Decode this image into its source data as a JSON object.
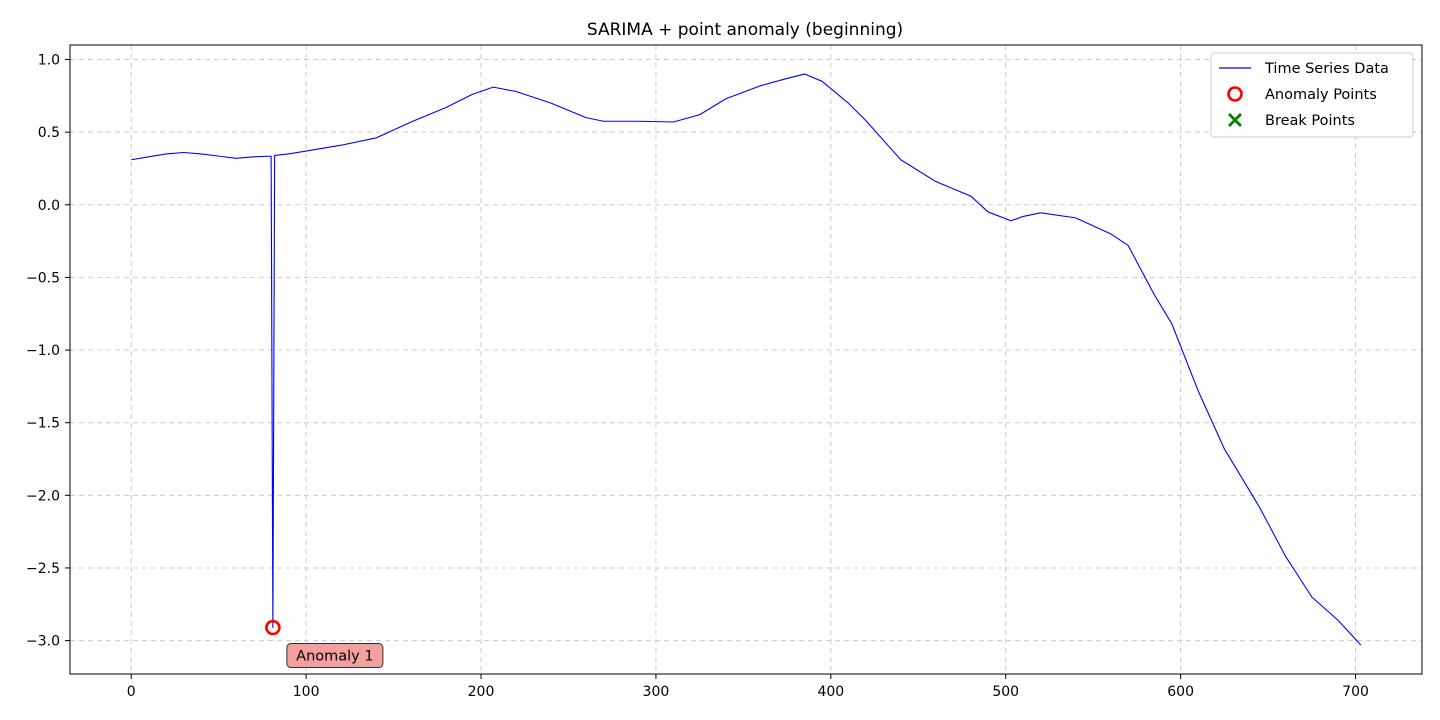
{
  "chart_data": {
    "type": "line",
    "title": "SARIMA + point anomaly (beginning)",
    "xlabel": "",
    "ylabel": "",
    "xlim": [
      -35,
      738
    ],
    "ylim": [
      -3.23,
      1.1
    ],
    "xticks": [
      0,
      100,
      200,
      300,
      400,
      500,
      600,
      700
    ],
    "yticks": [
      1.0,
      0.5,
      0.0,
      -0.5,
      -1.0,
      -1.5,
      -2.0,
      -2.5,
      -3.0
    ],
    "xtick_labels": [
      "0",
      "100",
      "200",
      "300",
      "400",
      "500",
      "600",
      "700"
    ],
    "ytick_labels": [
      "1.0",
      "0.5",
      "0.0",
      "−0.5",
      "−1.0",
      "−1.5",
      "−2.0",
      "−2.5",
      "−3.0"
    ],
    "grid": true,
    "legend_placement": "top-right",
    "legend": [
      {
        "label": "Time Series Data",
        "kind": "line",
        "color": "#0000ff"
      },
      {
        "label": "Anomaly Points",
        "kind": "circle",
        "color": "#ff0000"
      },
      {
        "label": "Break Points",
        "kind": "x",
        "color": "#008000"
      }
    ],
    "series": [
      {
        "name": "Time Series Data",
        "color": "#0000ff",
        "points": [
          [
            0,
            0.31
          ],
          [
            10,
            0.33
          ],
          [
            20,
            0.35
          ],
          [
            30,
            0.36
          ],
          [
            40,
            0.35
          ],
          [
            50,
            0.335
          ],
          [
            60,
            0.32
          ],
          [
            70,
            0.33
          ],
          [
            80,
            0.335
          ],
          [
            81,
            -2.91
          ],
          [
            82,
            0.34
          ],
          [
            90,
            0.35
          ],
          [
            100,
            0.37
          ],
          [
            120,
            0.41
          ],
          [
            140,
            0.46
          ],
          [
            160,
            0.57
          ],
          [
            180,
            0.67
          ],
          [
            195,
            0.76
          ],
          [
            207,
            0.81
          ],
          [
            220,
            0.78
          ],
          [
            240,
            0.7
          ],
          [
            260,
            0.6
          ],
          [
            270,
            0.575
          ],
          [
            290,
            0.575
          ],
          [
            310,
            0.57
          ],
          [
            325,
            0.62
          ],
          [
            340,
            0.73
          ],
          [
            360,
            0.82
          ],
          [
            375,
            0.87
          ],
          [
            385,
            0.9
          ],
          [
            395,
            0.85
          ],
          [
            410,
            0.7
          ],
          [
            420,
            0.58
          ],
          [
            440,
            0.31
          ],
          [
            460,
            0.16
          ],
          [
            480,
            0.06
          ],
          [
            490,
            -0.05
          ],
          [
            503,
            -0.11
          ],
          [
            510,
            -0.08
          ],
          [
            520,
            -0.055
          ],
          [
            540,
            -0.09
          ],
          [
            560,
            -0.2
          ],
          [
            570,
            -0.28
          ],
          [
            585,
            -0.62
          ],
          [
            595,
            -0.82
          ],
          [
            610,
            -1.28
          ],
          [
            625,
            -1.68
          ],
          [
            645,
            -2.08
          ],
          [
            660,
            -2.42
          ],
          [
            675,
            -2.7
          ],
          [
            690,
            -2.86
          ],
          [
            703,
            -3.03
          ]
        ]
      }
    ],
    "anomaly_points": [
      {
        "x": 81,
        "y": -2.91,
        "label": "Anomaly 1"
      }
    ],
    "break_points": []
  }
}
